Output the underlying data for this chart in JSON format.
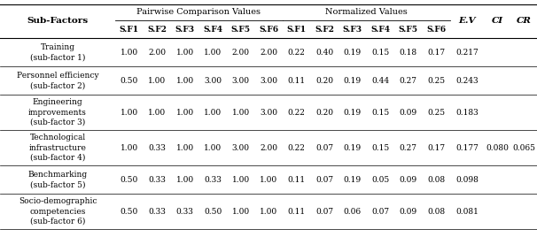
{
  "headers_row1": [
    "Sub-Factors",
    "Pairwise Comparison Values",
    "",
    "",
    "",
    "",
    "",
    "Normalized Values",
    "",
    "",
    "",
    "",
    "",
    "E.V",
    "CI",
    "CR"
  ],
  "headers_row2": [
    "",
    "S.F1",
    "S.F2",
    "S.F3",
    "S.F4",
    "S.F5",
    "S.F6",
    "S.F1",
    "S.F2",
    "S.F3",
    "S.F4",
    "S.F5",
    "S.F6",
    "",
    "",
    ""
  ],
  "rows": [
    {
      "name_lines": [
        "Training",
        "(sub-factor 1)"
      ],
      "values": [
        "1.00",
        "2.00",
        "1.00",
        "1.00",
        "2.00",
        "2.00",
        "0.22",
        "0.40",
        "0.19",
        "0.15",
        "0.18",
        "0.17",
        "0.217",
        "",
        ""
      ]
    },
    {
      "name_lines": [
        "Personnel efficiency",
        "(sub-factor 2)"
      ],
      "values": [
        "0.50",
        "1.00",
        "1.00",
        "3.00",
        "3.00",
        "3.00",
        "0.11",
        "0.20",
        "0.19",
        "0.44",
        "0.27",
        "0.25",
        "0.243",
        "",
        ""
      ]
    },
    {
      "name_lines": [
        "Engineering",
        "improvements",
        "(sub-factor 3)"
      ],
      "values": [
        "1.00",
        "1.00",
        "1.00",
        "1.00",
        "1.00",
        "3.00",
        "0.22",
        "0.20",
        "0.19",
        "0.15",
        "0.09",
        "0.25",
        "0.183",
        "",
        ""
      ]
    },
    {
      "name_lines": [
        "Technological",
        "infrastructure",
        "(sub-factor 4)"
      ],
      "values": [
        "1.00",
        "0.33",
        "1.00",
        "1.00",
        "3.00",
        "2.00",
        "0.22",
        "0.07",
        "0.19",
        "0.15",
        "0.27",
        "0.17",
        "0.177",
        "0.080",
        "0.065"
      ]
    },
    {
      "name_lines": [
        "Benchmarking",
        "(sub-factor 5)"
      ],
      "values": [
        "0.50",
        "0.33",
        "1.00",
        "0.33",
        "1.00",
        "1.00",
        "0.11",
        "0.07",
        "0.19",
        "0.05",
        "0.09",
        "0.08",
        "0.098",
        "",
        ""
      ]
    },
    {
      "name_lines": [
        "Socio-demographic",
        "competencies",
        "(sub-factor 6)"
      ],
      "values": [
        "0.50",
        "0.33",
        "0.33",
        "0.50",
        "1.00",
        "1.00",
        "0.11",
        "0.07",
        "0.06",
        "0.07",
        "0.09",
        "0.08",
        "0.081",
        "",
        ""
      ]
    }
  ],
  "ci_cr_row": 3,
  "ci_value": "0.080",
  "cr_value": "0.065",
  "bg_color": "#ffffff",
  "text_color": "#000000",
  "line_color": "#000000",
  "font_size": 6.5,
  "header_font_size": 7.0,
  "bold_header_font_size": 7.5
}
